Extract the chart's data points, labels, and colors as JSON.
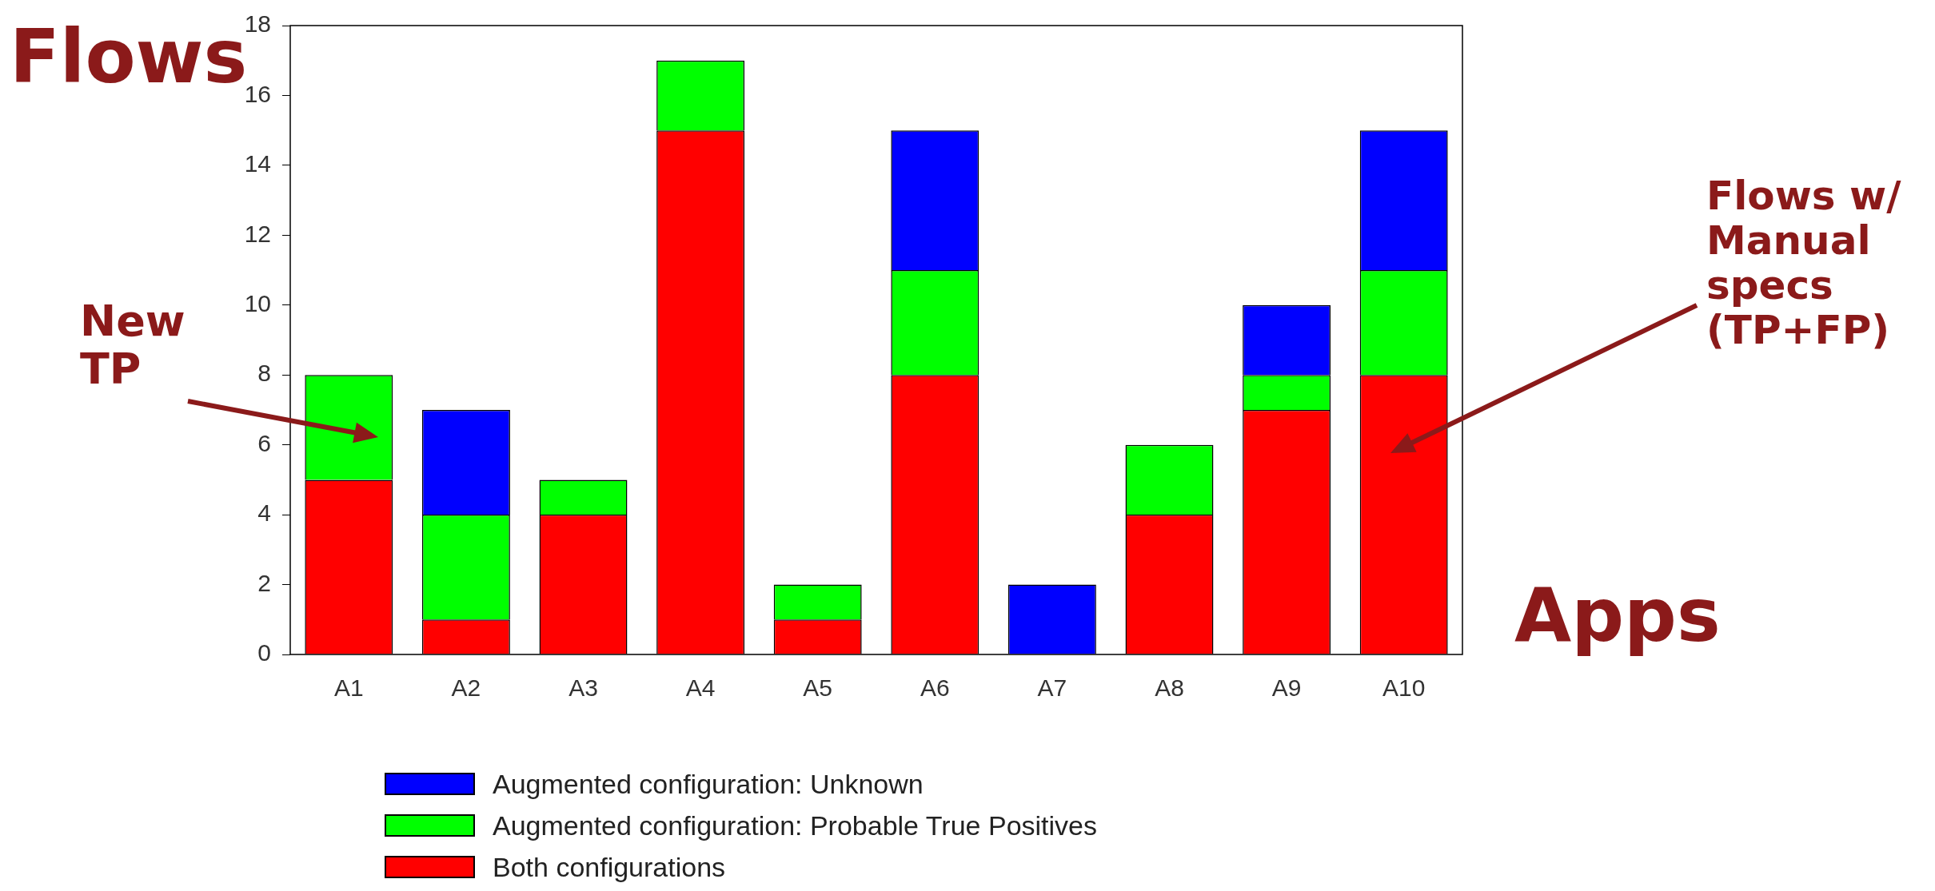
{
  "chart_data": {
    "type": "bar",
    "stacked": true,
    "xlabel": "Apps",
    "ylabel": "Flows",
    "categories": [
      "A1",
      "A2",
      "A3",
      "A4",
      "A5",
      "A6",
      "A7",
      "A8",
      "A9",
      "A10"
    ],
    "series": [
      {
        "name": "Both configurations",
        "color": "#ff0000",
        "values": [
          5,
          1,
          4,
          15,
          1,
          8,
          0,
          4,
          7,
          8
        ]
      },
      {
        "name": "Augmented configuration: Probable True Positives",
        "color": "#00ff00",
        "values": [
          3,
          3,
          1,
          2,
          1,
          3,
          0,
          2,
          1,
          3
        ]
      },
      {
        "name": "Augmented configuration: Unknown",
        "color": "#0000ff",
        "values": [
          0,
          3,
          0,
          0,
          0,
          4,
          2,
          0,
          2,
          4
        ]
      }
    ],
    "ylim": [
      0,
      18
    ],
    "yticks": [
      0,
      2,
      4,
      6,
      8,
      10,
      12,
      14,
      16,
      18
    ],
    "grid": false,
    "legend": "bottom",
    "annotations": [
      "New TP",
      "Flows w/ Manual specs (TP+FP)"
    ]
  }
}
